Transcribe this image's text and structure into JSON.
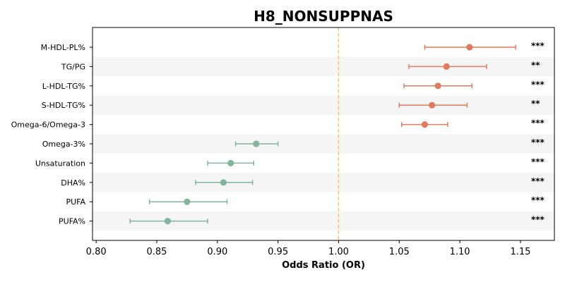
{
  "chart_data": {
    "type": "forest",
    "title": "H8_NONSUPPNAS",
    "xlabel": "Odds Ratio (OR)",
    "xlim": [
      0.797,
      1.178
    ],
    "xticks": [
      "0.80",
      "0.85",
      "0.90",
      "0.95",
      "1.00",
      "1.05",
      "1.10",
      "1.15"
    ],
    "xtick_values": [
      0.8,
      0.85,
      0.9,
      0.95,
      1.0,
      1.05,
      1.1,
      1.15
    ],
    "reference_line": 1.0,
    "grid": false,
    "colors": {
      "positive": "#e07b5f",
      "negative": "#82b59d",
      "reference": "#f5c27a",
      "band": "#f5f5f5"
    },
    "rows": [
      {
        "label": "M-HDL-PL%",
        "or": 1.108,
        "ci_low": 1.071,
        "ci_high": 1.146,
        "sig": "***",
        "direction": "positive"
      },
      {
        "label": "TG/PG",
        "or": 1.089,
        "ci_low": 1.058,
        "ci_high": 1.122,
        "sig": "**",
        "direction": "positive"
      },
      {
        "label": "L-HDL-TG%",
        "or": 1.082,
        "ci_low": 1.054,
        "ci_high": 1.11,
        "sig": "***",
        "direction": "positive"
      },
      {
        "label": "S-HDL-TG%",
        "or": 1.077,
        "ci_low": 1.05,
        "ci_high": 1.106,
        "sig": "**",
        "direction": "positive"
      },
      {
        "label": "Omega-6/Omega-3",
        "or": 1.071,
        "ci_low": 1.052,
        "ci_high": 1.09,
        "sig": "***",
        "direction": "positive"
      },
      {
        "label": "Omega-3%",
        "or": 0.932,
        "ci_low": 0.915,
        "ci_high": 0.95,
        "sig": "***",
        "direction": "negative"
      },
      {
        "label": "Unsaturation",
        "or": 0.911,
        "ci_low": 0.892,
        "ci_high": 0.93,
        "sig": "***",
        "direction": "negative"
      },
      {
        "label": "DHA%",
        "or": 0.905,
        "ci_low": 0.882,
        "ci_high": 0.929,
        "sig": "***",
        "direction": "negative"
      },
      {
        "label": "PUFA",
        "or": 0.875,
        "ci_low": 0.844,
        "ci_high": 0.908,
        "sig": "***",
        "direction": "negative"
      },
      {
        "label": "PUFA%",
        "or": 0.859,
        "ci_low": 0.828,
        "ci_high": 0.892,
        "sig": "***",
        "direction": "negative"
      }
    ]
  }
}
